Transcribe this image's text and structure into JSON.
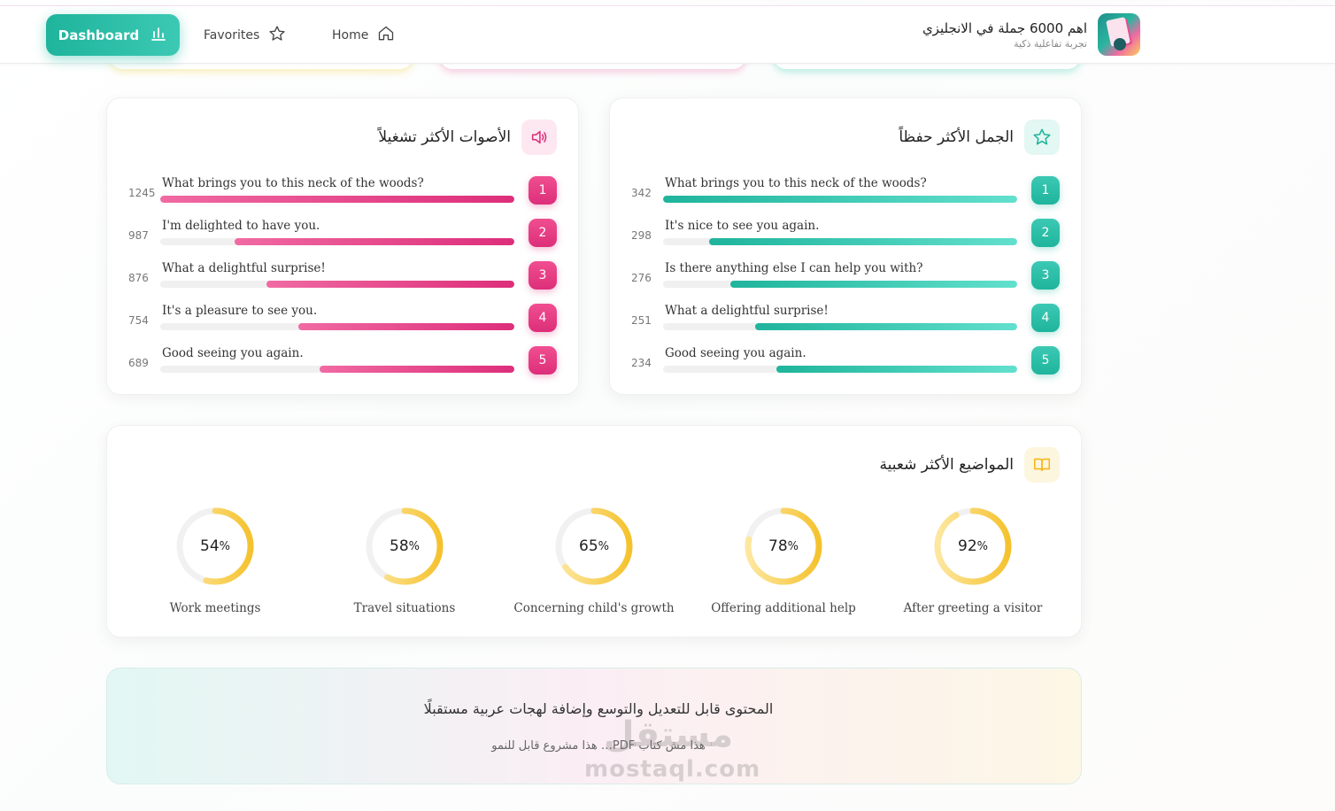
{
  "header": {
    "brand_title": "اهم 6000 جملة في الانجليزي",
    "brand_subtitle": "تجربة تفاعلية ذكية",
    "nav": {
      "dashboard": "Dashboard",
      "favorites": "Favorites",
      "home": "Home"
    }
  },
  "most_played": {
    "title": "الأصوات الأكثر تشغيلاً",
    "icon": "speaker-icon",
    "items": [
      {
        "rank": "1",
        "text": "What brings you to this neck of the woods?",
        "count": "1245",
        "fraction": 1.0
      },
      {
        "rank": "2",
        "text": "I'm delighted to have you.",
        "count": "987",
        "fraction": 0.79
      },
      {
        "rank": "3",
        "text": "What a delightful surprise!",
        "count": "876",
        "fraction": 0.7
      },
      {
        "rank": "4",
        "text": "It's a pleasure to see you.",
        "count": "754",
        "fraction": 0.61
      },
      {
        "rank": "5",
        "text": "Good seeing you again.",
        "count": "689",
        "fraction": 0.55
      }
    ]
  },
  "most_memorized": {
    "title": "الجمل الأكثر حفظاً",
    "icon": "star-icon",
    "items": [
      {
        "rank": "1",
        "text": "What brings you to this neck of the woods?",
        "count": "342",
        "fraction": 1.0
      },
      {
        "rank": "2",
        "text": "It's nice to see you again.",
        "count": "298",
        "fraction": 0.87
      },
      {
        "rank": "3",
        "text": "Is there anything else I can help you with?",
        "count": "276",
        "fraction": 0.81
      },
      {
        "rank": "4",
        "text": "What a delightful surprise!",
        "count": "251",
        "fraction": 0.74
      },
      {
        "rank": "5",
        "text": "Good seeing you again.",
        "count": "234",
        "fraction": 0.68
      }
    ]
  },
  "popular_topics": {
    "title": "المواضيع الأكثر شعبية",
    "icon": "book-icon",
    "items": [
      {
        "label": "Work meetings",
        "value": "54",
        "percent": 54
      },
      {
        "label": "Travel situations",
        "value": "58",
        "percent": 58
      },
      {
        "label": "Concerning child's growth",
        "value": "65",
        "percent": 65
      },
      {
        "label": "Offering additional help",
        "value": "78",
        "percent": 78
      },
      {
        "label": "After greeting a visitor",
        "value": "92",
        "percent": 92
      }
    ]
  },
  "banner": {
    "line1": "المحتوى قابل للتعديل والتوسع وإضافة لهجات عربية مستقبلًا",
    "line2": "هذا مش كتاب PDF… هذا مشروع قابل للنمو"
  },
  "watermark": {
    "arabic": "مستقل",
    "latin": "mostaql.com"
  },
  "colors": {
    "teal": "#1fb49c",
    "pink": "#dd2e7a",
    "yellow": "#f5c22e"
  }
}
